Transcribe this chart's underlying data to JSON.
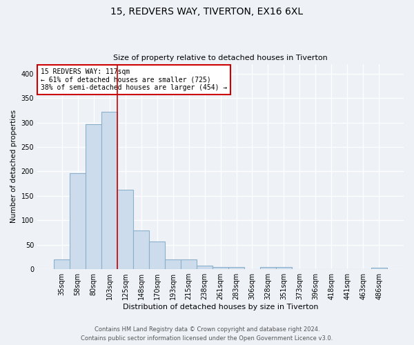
{
  "title1": "15, REDVERS WAY, TIVERTON, EX16 6XL",
  "title2": "Size of property relative to detached houses in Tiverton",
  "xlabel": "Distribution of detached houses by size in Tiverton",
  "ylabel": "Number of detached properties",
  "categories": [
    "35sqm",
    "58sqm",
    "80sqm",
    "103sqm",
    "125sqm",
    "148sqm",
    "170sqm",
    "193sqm",
    "215sqm",
    "238sqm",
    "261sqm",
    "283sqm",
    "306sqm",
    "328sqm",
    "351sqm",
    "373sqm",
    "396sqm",
    "418sqm",
    "441sqm",
    "463sqm",
    "486sqm"
  ],
  "values": [
    20,
    197,
    297,
    322,
    163,
    80,
    57,
    20,
    20,
    7,
    5,
    5,
    0,
    4,
    4,
    0,
    0,
    0,
    0,
    0,
    3
  ],
  "bar_color": "#ccdcec",
  "bar_edge_color": "#8ab0cc",
  "vline_color": "#cc0000",
  "vline_index": 3.5,
  "annotation_text": "15 REDVERS WAY: 117sqm\n← 61% of detached houses are smaller (725)\n38% of semi-detached houses are larger (454) →",
  "annotation_box_color": "#ffffff",
  "annotation_box_edge": "#cc0000",
  "ylim": [
    0,
    420
  ],
  "yticks": [
    0,
    50,
    100,
    150,
    200,
    250,
    300,
    350,
    400
  ],
  "footer1": "Contains HM Land Registry data © Crown copyright and database right 2024.",
  "footer2": "Contains public sector information licensed under the Open Government Licence v3.0.",
  "bg_color": "#eef2f7",
  "plot_bg_color": "#eef2f7",
  "grid_color": "#ffffff",
  "title1_fontsize": 10,
  "title2_fontsize": 8,
  "ylabel_fontsize": 7.5,
  "xlabel_fontsize": 8,
  "tick_fontsize": 7,
  "footer_fontsize": 6
}
